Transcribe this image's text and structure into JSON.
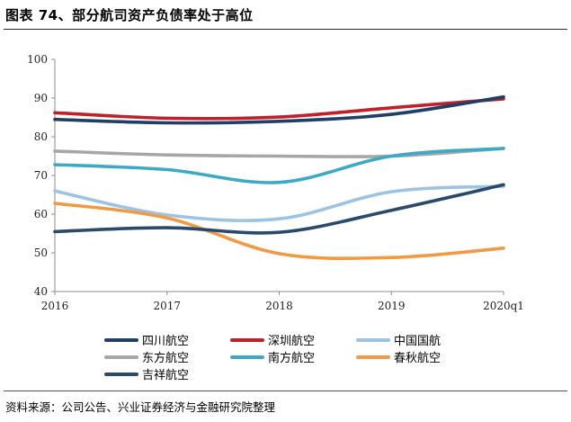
{
  "header": {
    "title": "图表 74、部分航司资产负债率处于高位"
  },
  "footer": {
    "source": "资料来源：公司公告、兴业证券经济与金融研究院整理"
  },
  "chart_data": {
    "type": "line",
    "title": "",
    "xlabel": "",
    "ylabel": "",
    "x": [
      "2016",
      "2017",
      "2018",
      "2019",
      "2020q1"
    ],
    "ylim": [
      40,
      100
    ],
    "yticks": [
      40,
      50,
      60,
      70,
      80,
      90,
      100
    ],
    "grid": false,
    "legend": "bottom",
    "series": [
      {
        "name": "四川航空",
        "color": "#1f3f66",
        "values": [
          84.5,
          83.6,
          84.0,
          85.8,
          90.3
        ]
      },
      {
        "name": "深圳航空",
        "color": "#c0202a",
        "values": [
          86.2,
          84.8,
          85.1,
          87.5,
          89.8
        ]
      },
      {
        "name": "中国国航",
        "color": "#9cc3e3",
        "values": [
          66.0,
          59.8,
          58.8,
          65.8,
          67.2
        ]
      },
      {
        "name": "东方航空",
        "color": "#a6a6a6",
        "values": [
          76.3,
          75.3,
          75.0,
          75.0,
          77.0
        ]
      },
      {
        "name": "南方航空",
        "color": "#3ea8c7",
        "values": [
          72.8,
          71.5,
          68.2,
          75.0,
          77.0
        ]
      },
      {
        "name": "春秋航空",
        "color": "#f19a44",
        "values": [
          62.8,
          59.0,
          49.8,
          48.8,
          51.2
        ]
      },
      {
        "name": "吉祥航空",
        "color": "#2a4a6c",
        "values": [
          55.5,
          56.5,
          55.3,
          61.0,
          67.6
        ]
      }
    ]
  }
}
